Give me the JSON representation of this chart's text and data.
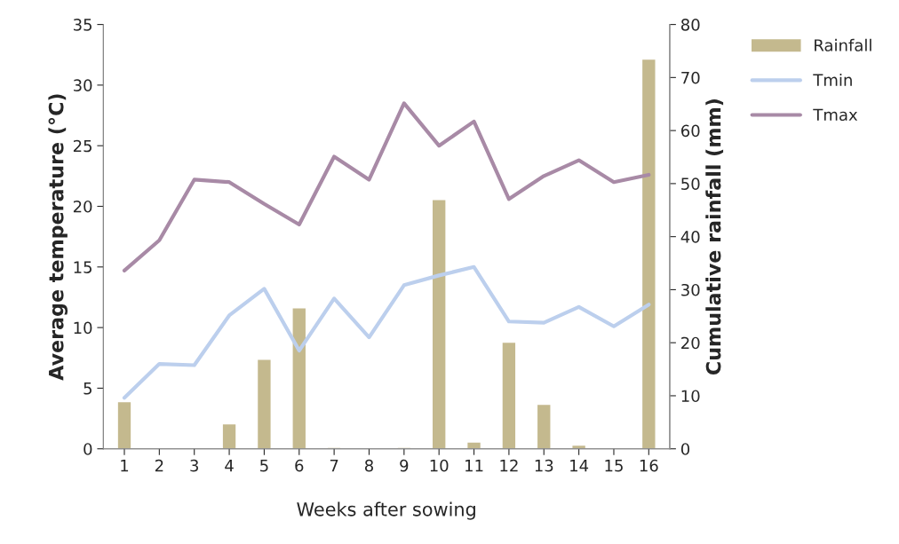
{
  "chart_data": {
    "type": "line",
    "xlabel": "Weeks after sowing",
    "ylabel": "Average temperature (°C)",
    "y2label": "Cumulative rainfall (mm)",
    "categories": [
      "1",
      "2",
      "3",
      "4",
      "5",
      "6",
      "7",
      "8",
      "9",
      "10",
      "11",
      "12",
      "13",
      "14",
      "15",
      "16"
    ],
    "series": [
      {
        "name": "Rainfall",
        "type": "bar",
        "axis": "y2",
        "color": "#c4b98e",
        "values": [
          8.9,
          null,
          null,
          4.7,
          16.9,
          26.6,
          0.3,
          null,
          0.3,
          47.0,
          1.3,
          20.1,
          8.4,
          0.7,
          null,
          73.5
        ]
      },
      {
        "name": "Tmin",
        "color": "#bccfed",
        "values": [
          4.2,
          7.0,
          6.9,
          11.0,
          13.2,
          8.1,
          12.4,
          9.2,
          13.5,
          14.3,
          15.0,
          10.5,
          10.4,
          11.7,
          10.1,
          11.9
        ]
      },
      {
        "name": "Tmax",
        "color": "#a88aa6",
        "values": [
          14.7,
          17.2,
          22.2,
          22.0,
          20.2,
          18.5,
          24.1,
          22.2,
          28.5,
          25.0,
          27.0,
          20.6,
          22.5,
          23.8,
          22.0,
          22.6
        ]
      }
    ],
    "ylim": [
      0,
      35
    ],
    "yticks": [
      0,
      5,
      10,
      15,
      20,
      25,
      30,
      35
    ],
    "y2lim": [
      0,
      80
    ],
    "y2ticks": [
      0,
      10,
      20,
      30,
      40,
      50,
      60,
      70,
      80
    ],
    "grid": false,
    "legend": "top right",
    "marker": "none",
    "line_style": "solid"
  }
}
